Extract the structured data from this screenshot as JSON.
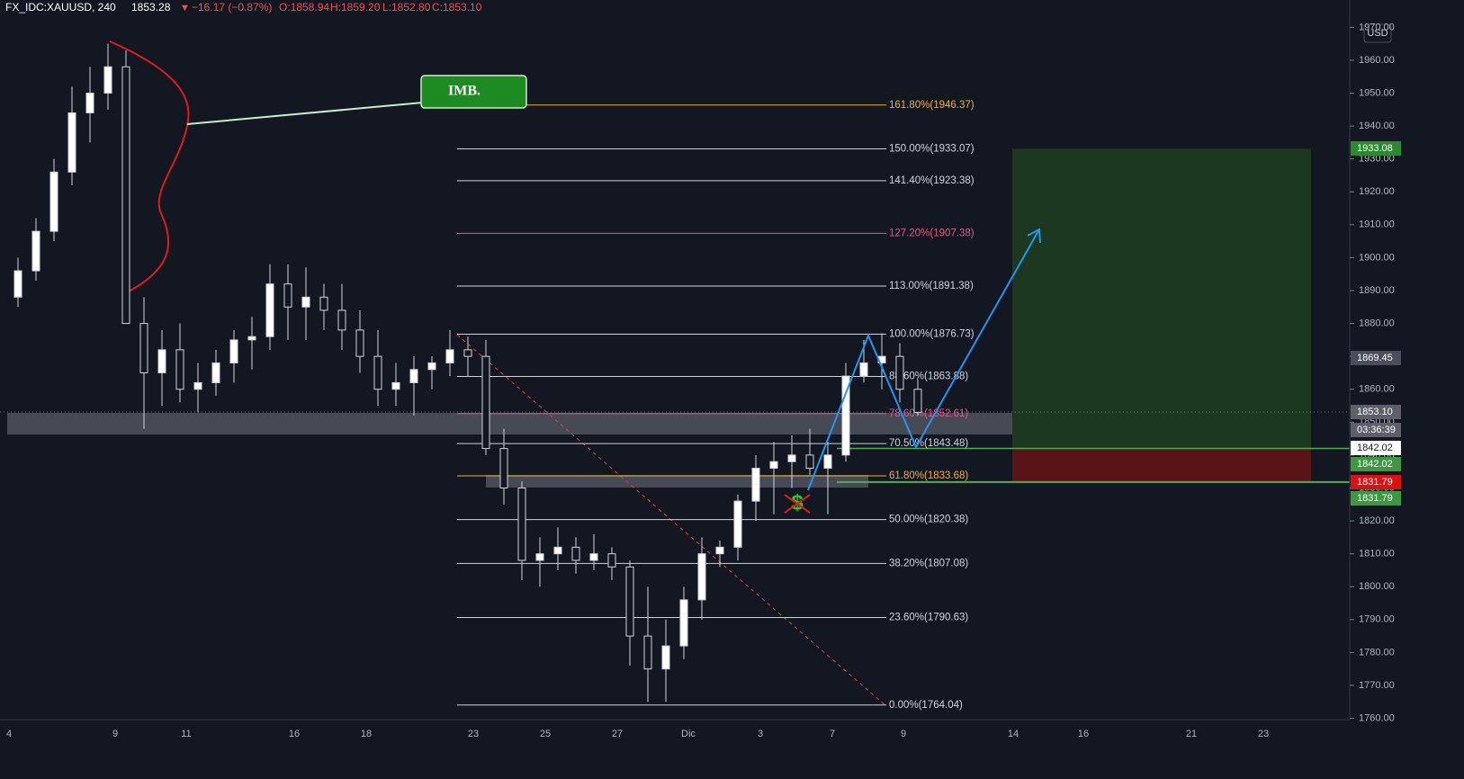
{
  "chart_data": {
    "type": "candlestick",
    "symbol": "FX_IDC:XAUUSD, 240",
    "last": 1853.28,
    "change_arrow": "▼",
    "change": "−16.17 (−0.87%)",
    "ohlc": [
      "O:1858.94",
      "H:1859.20",
      "L:1852.80",
      "C:1853.10"
    ],
    "currency": "USD",
    "annotation": "IMB.",
    "countdown": "03:36:39",
    "up_color": "#ffffff",
    "down_color": "#131722",
    "ylim": [
      1759.6,
      1978.3
    ],
    "yticks": [
      {
        "value": 1760,
        "label": "1760.00"
      },
      {
        "value": 1770,
        "label": "1770.00"
      },
      {
        "value": 1780,
        "label": "1780.00"
      },
      {
        "value": 1790,
        "label": "1790.00"
      },
      {
        "value": 1800,
        "label": "1800.00"
      },
      {
        "value": 1810,
        "label": "1810.00"
      },
      {
        "value": 1820,
        "label": "1820.00"
      },
      {
        "value": 1830,
        "label": "1830.00"
      },
      {
        "value": 1840,
        "label": "1840.00"
      },
      {
        "value": 1850,
        "label": "1850.00"
      },
      {
        "value": 1860,
        "label": "1860.00"
      },
      {
        "value": 1870,
        "label": "1870.00"
      },
      {
        "value": 1880,
        "label": "1880.00"
      },
      {
        "value": 1890,
        "label": "1890.00"
      },
      {
        "value": 1900,
        "label": "1900.00"
      },
      {
        "value": 1910,
        "label": "1910.00"
      },
      {
        "value": 1920,
        "label": "1920.00"
      },
      {
        "value": 1930,
        "label": "1930.00"
      },
      {
        "value": 1940,
        "label": "1940.00"
      },
      {
        "value": 1950,
        "label": "1950.00"
      },
      {
        "value": 1960,
        "label": "1960.00"
      },
      {
        "value": 1970,
        "label": "1970.00"
      }
    ],
    "x_labels": [
      "4",
      "9",
      "11",
      "16",
      "18",
      "23",
      "25",
      "27",
      "Dic",
      "3",
      "7",
      "9",
      "14",
      "16",
      "21",
      "23"
    ],
    "candles": {
      "open": [
        1888,
        1896,
        1908,
        1926,
        1944,
        1950,
        1958,
        1880,
        1865,
        1872,
        1860,
        1862,
        1868,
        1875,
        1876,
        1892,
        1885,
        1888,
        1884,
        1878,
        1870,
        1860,
        1862,
        1866,
        1868,
        1872,
        1870,
        1842,
        1830,
        1808,
        1810,
        1812,
        1808,
        1810,
        1806,
        1785,
        1775,
        1782,
        1796,
        1810,
        1812,
        1826,
        1836,
        1838,
        1840,
        1836,
        1840,
        1864,
        1868,
        1870,
        1860
      ],
      "high": [
        1900,
        1912,
        1930,
        1952,
        1958,
        1965,
        1963,
        1888,
        1878,
        1880,
        1868,
        1872,
        1878,
        1882,
        1898,
        1898,
        1897,
        1892,
        1892,
        1884,
        1878,
        1868,
        1870,
        1870,
        1878,
        1876,
        1875,
        1848,
        1832,
        1815,
        1818,
        1815,
        1816,
        1812,
        1808,
        1800,
        1790,
        1800,
        1815,
        1814,
        1828,
        1840,
        1844,
        1846,
        1848,
        1844,
        1868,
        1875,
        1877,
        1874,
        1863
      ],
      "low": [
        1885,
        1893,
        1905,
        1922,
        1935,
        1945,
        1880,
        1848,
        1855,
        1856,
        1853,
        1858,
        1862,
        1866,
        1872,
        1875,
        1875,
        1878,
        1872,
        1865,
        1855,
        1855,
        1852,
        1860,
        1864,
        1864,
        1840,
        1825,
        1802,
        1800,
        1805,
        1804,
        1805,
        1802,
        1776,
        1765,
        1765,
        1778,
        1790,
        1806,
        1808,
        1820,
        1822,
        1830,
        1834,
        1822,
        1838,
        1862,
        1860,
        1856,
        1852
      ],
      "close": [
        1896,
        1908,
        1926,
        1944,
        1950,
        1958,
        1880,
        1865,
        1872,
        1860,
        1862,
        1868,
        1875,
        1876,
        1892,
        1885,
        1888,
        1884,
        1878,
        1870,
        1860,
        1862,
        1866,
        1868,
        1872,
        1870,
        1842,
        1830,
        1808,
        1810,
        1812,
        1808,
        1810,
        1806,
        1785,
        1775,
        1782,
        1796,
        1810,
        1812,
        1826,
        1836,
        1838,
        1840,
        1836,
        1840,
        1864,
        1868,
        1870,
        1860,
        1853
      ]
    },
    "fib_levels": [
      {
        "value": 1946.37,
        "label": "161.80%(1946.37)",
        "color": "#f0b030"
      },
      {
        "value": 1933.07,
        "label": "150.00%(1933.07)",
        "color": "#d1d4dc"
      },
      {
        "value": 1923.38,
        "label": "141.40%(1923.38)",
        "color": "#d1d4dc"
      },
      {
        "value": 1907.38,
        "label": "127.20%(1907.38)",
        "color": "#e05a8a"
      },
      {
        "value": 1891.38,
        "label": "113.00%(1891.38)",
        "color": "#d1d4dc"
      },
      {
        "value": 1876.73,
        "label": "100.00%(1876.73)",
        "color": "#d1d4dc"
      },
      {
        "value": 1863.88,
        "label": "88.60%(1863.88)",
        "color": "#d1d4dc"
      },
      {
        "value": 1852.61,
        "label": "78.60%(1852.61)",
        "color": "#e05a8a"
      },
      {
        "value": 1843.48,
        "label": "70.50%(1843.48)",
        "color": "#d1d4dc"
      },
      {
        "value": 1833.68,
        "label": "61.80%(1833.68)",
        "color": "#f0b030"
      },
      {
        "value": 1820.38,
        "label": "50.00%(1820.38)",
        "color": "#d1d4dc"
      },
      {
        "value": 1807.08,
        "label": "38.20%(1807.08)",
        "color": "#d1d4dc"
      },
      {
        "value": 1790.63,
        "label": "23.60%(1790.63)",
        "color": "#d1d4dc"
      },
      {
        "value": 1764.04,
        "label": "0.00%(1764.04)",
        "color": "#d1d4dc"
      }
    ],
    "price_labels": [
      {
        "value": 1933.08,
        "bg": "#2a8a2f",
        "fg": "#ffffff"
      },
      {
        "value": 1869.45,
        "bg": "#4a4e5a",
        "fg": "#ffffff"
      },
      {
        "value": 1853.1,
        "label": "1853.10",
        "bg": "#5d606b",
        "fg": "#ffffff"
      },
      {
        "value": 1842.02,
        "bg": "#ffffff",
        "fg": "#131722"
      },
      {
        "value": 1842.02,
        "bg": "#3b9a3f",
        "fg": "#ffffff"
      },
      {
        "value": 1831.79,
        "bg": "#e01010",
        "fg": "#ffffff"
      },
      {
        "value": 1831.79,
        "bg": "#3b9a3f",
        "fg": "#ffffff"
      }
    ]
  }
}
